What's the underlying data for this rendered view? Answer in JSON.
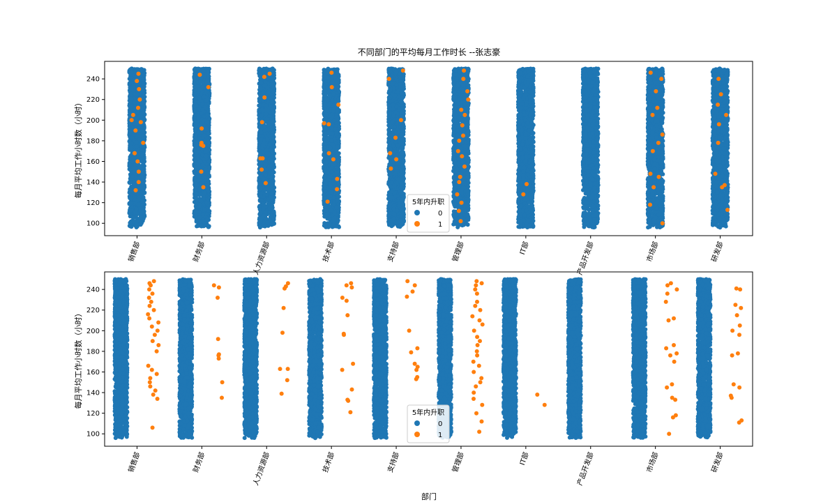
{
  "chart_data": [
    {
      "type": "scatter",
      "title": "不同部门的平均每月工作时长 --张志豪",
      "xlabel": "",
      "ylabel": "每月平均工作小时数（小时）",
      "categories": [
        "销售部",
        "财务部",
        "人力资源部",
        "技术部",
        "支持部",
        "管理部",
        "IT部",
        "产品开发部",
        "市场部",
        "研发部"
      ],
      "ylim": [
        88,
        257
      ],
      "yticks": [
        100,
        120,
        140,
        160,
        180,
        200,
        220,
        240
      ],
      "dodge": false,
      "legend": {
        "title": "5年内升职",
        "position": "bottom-center",
        "labels": [
          "0",
          "1"
        ]
      },
      "colors": {
        "0": "#1f77b4",
        "1": "#ff7f0e"
      },
      "series": [
        {
          "name": "0",
          "range_y": [
            96,
            250
          ]
        },
        {
          "name": "1",
          "sample_y": {
            "销售部": [
              245,
              238,
              230,
              220,
              212,
              205,
              200,
              198,
              190,
              178,
              168,
              160,
              150,
              140,
              132
            ],
            "财务部": [
              244,
              232,
              192,
              178,
              176,
              175,
              150,
              135
            ],
            "人力资源部": [
              245,
              242,
              222,
              198,
              163,
              163,
              152,
              139
            ],
            "技术部": [
              246,
              232,
              215,
              197,
              196,
              168,
              162,
              143,
              133,
              121
            ],
            "支持部": [
              248,
              240,
              200,
              183,
              168,
              162,
              153
            ],
            "管理部": [
              248,
              240,
              228,
              220,
              210,
              205,
              195,
              185,
              180,
              170,
              165,
              155,
              145,
              140,
              128,
              120,
              112,
              102
            ],
            "IT部": [
              138,
              128
            ],
            "产品开发部": [],
            "市场部": [
              246,
              240,
              228,
              212,
              205,
              186,
              178,
              170,
              148,
              145,
              135,
              118,
              100
            ],
            "研发部": [
              240,
              225,
              215,
              205,
              196,
              178,
              148,
              137,
              135,
              113
            ]
          }
        }
      ]
    },
    {
      "type": "scatter",
      "title": "",
      "xlabel": "部门",
      "ylabel": "每月平均工作小时数（小时）",
      "categories": [
        "销售部",
        "财务部",
        "人力资源部",
        "技术部",
        "支持部",
        "管理部",
        "IT部",
        "产品开发部",
        "市场部",
        "研发部"
      ],
      "ylim": [
        88,
        257
      ],
      "yticks": [
        100,
        120,
        140,
        160,
        180,
        200,
        220,
        240
      ],
      "dodge": true,
      "legend": {
        "title": "5年内升职",
        "position": "bottom-center",
        "labels": [
          "0",
          "1"
        ]
      },
      "colors": {
        "0": "#1f77b4",
        "1": "#ff7f0e"
      },
      "series": [
        {
          "name": "0",
          "range_y": [
            96,
            250
          ]
        },
        {
          "name": "1",
          "sample_y": {
            "销售部": [
              248,
              246,
              244,
              240,
              236,
              232,
              228,
              224,
              220,
              216,
              212,
              208,
              204,
              200,
              196,
              190,
              186,
              180,
              166,
              162,
              158,
              154,
              150,
              146,
              142,
              138,
              134,
              106
            ],
            "财务部": [
              244,
              242,
              232,
              192,
              177,
              176,
              173,
              150,
              135
            ],
            "人力资源部": [
              246,
              243,
              241,
              222,
              198,
              163,
              163,
              152,
              139
            ],
            "技术部": [
              246,
              244,
              242,
              232,
              229,
              215,
              197,
              196,
              168,
              162,
              143,
              133,
              132,
              121
            ],
            "支持部": [
              248,
              244,
              238,
              233,
              200,
              183,
              179,
              168,
              165,
              162,
              155,
              153
            ],
            "管理部": [
              248,
              246,
              244,
              240,
              236,
              228,
              224,
              220,
              214,
              210,
              206,
              200,
              194,
              190,
              186,
              180,
              176,
              170,
              166,
              160,
              154,
              150,
              146,
              140,
              134,
              128,
              120,
              112,
              102
            ],
            "IT部": [
              138,
              128
            ],
            "产品开发部": [],
            "市场部": [
              246,
              244,
              240,
              236,
              228,
              212,
              210,
              186,
              183,
              178,
              176,
              170,
              148,
              145,
              135,
              133,
              118,
              116,
              100
            ],
            "研发部": [
              241,
              240,
              225,
              222,
              215,
              205,
              200,
              196,
              178,
              176,
              148,
              145,
              137,
              135,
              113,
              111
            ]
          }
        }
      ]
    }
  ]
}
